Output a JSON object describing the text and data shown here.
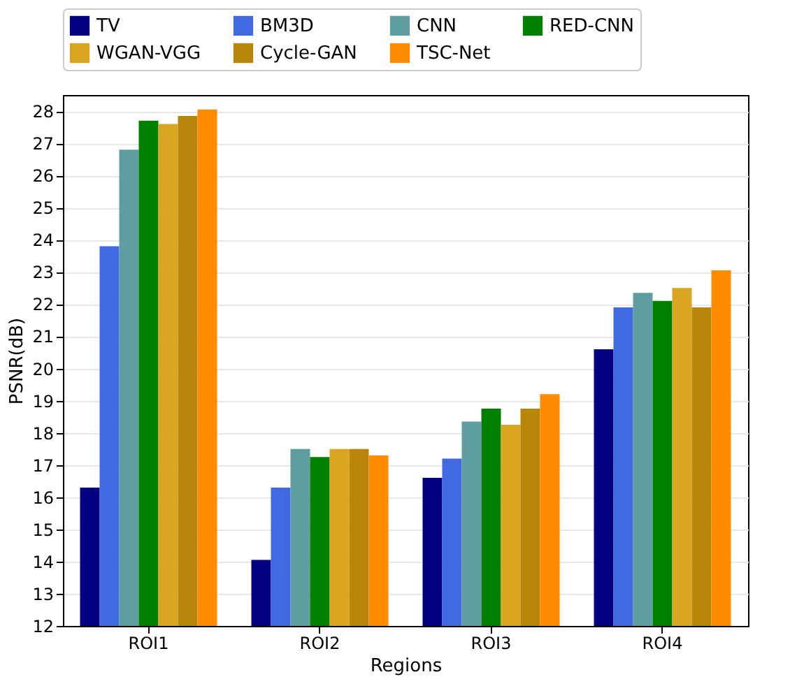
{
  "chart_data": {
    "type": "bar",
    "xlabel": "Regions",
    "ylabel": "PSNR(dB)",
    "categories": [
      "ROI1",
      "ROI2",
      "ROI3",
      "ROI4"
    ],
    "series": [
      {
        "name": "TV",
        "color": "#000080",
        "values": [
          16.3,
          14.05,
          16.6,
          20.6
        ]
      },
      {
        "name": "BM3D",
        "color": "#4169e1",
        "values": [
          23.8,
          16.3,
          17.2,
          21.9
        ]
      },
      {
        "name": "CNN",
        "color": "#5f9ea0",
        "values": [
          26.8,
          17.5,
          18.35,
          22.35
        ]
      },
      {
        "name": "RED-CNN",
        "color": "#008000",
        "values": [
          27.7,
          17.25,
          18.75,
          22.1
        ]
      },
      {
        "name": "WGAN-VGG",
        "color": "#daa520",
        "values": [
          27.6,
          17.5,
          18.25,
          22.5
        ]
      },
      {
        "name": "Cycle-GAN",
        "color": "#b8860b",
        "values": [
          27.85,
          17.5,
          18.75,
          21.9
        ]
      },
      {
        "name": "TSC-Net",
        "color": "#ff8c00",
        "values": [
          28.05,
          17.3,
          19.2,
          23.05
        ]
      }
    ],
    "ylim": [
      12,
      28.5
    ],
    "yticks": [
      12,
      13,
      14,
      15,
      16,
      17,
      18,
      19,
      20,
      21,
      22,
      23,
      24,
      25,
      26,
      27,
      28
    ],
    "grid": "y",
    "legend": "top"
  }
}
